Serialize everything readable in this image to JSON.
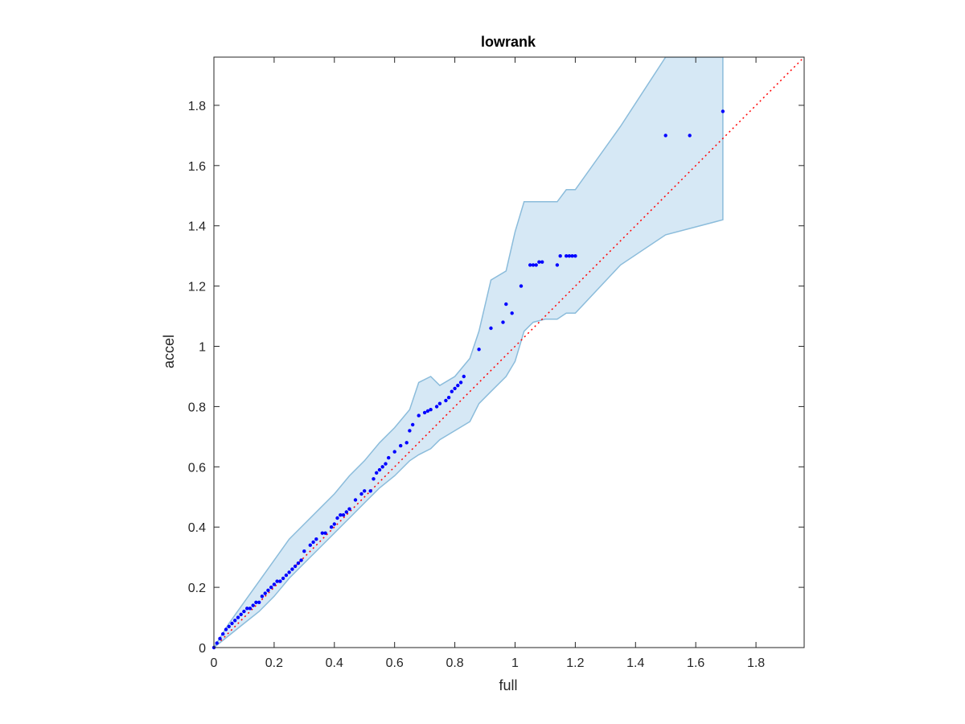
{
  "chart_data": {
    "type": "scatter",
    "title": "lowrank",
    "xlabel": "full",
    "ylabel": "accel",
    "xlim": [
      0,
      1.96
    ],
    "ylim": [
      0,
      1.96
    ],
    "xticks": [
      "0",
      "0.2",
      "0.4",
      "0.6",
      "0.8",
      "1",
      "1.2",
      "1.4",
      "1.6",
      "1.8"
    ],
    "yticks": [
      "0",
      "0.2",
      "0.4",
      "0.6",
      "0.8",
      "1",
      "1.2",
      "1.4",
      "1.6",
      "1.8"
    ],
    "xtick_values": [
      0,
      0.2,
      0.4,
      0.6,
      0.8,
      1.0,
      1.2,
      1.4,
      1.6,
      1.8
    ],
    "ytick_values": [
      0,
      0.2,
      0.4,
      0.6,
      0.8,
      1.0,
      1.2,
      1.4,
      1.6,
      1.8
    ],
    "grid": false,
    "reference_line": {
      "x": [
        0,
        1.96
      ],
      "y": [
        0,
        1.96
      ],
      "style": "dotted",
      "color": "#ff0000"
    },
    "band": {
      "x": [
        0,
        0.05,
        0.1,
        0.15,
        0.2,
        0.25,
        0.3,
        0.35,
        0.4,
        0.45,
        0.5,
        0.55,
        0.6,
        0.65,
        0.68,
        0.72,
        0.75,
        0.8,
        0.85,
        0.88,
        0.92,
        0.97,
        1.0,
        1.03,
        1.06,
        1.1,
        1.14,
        1.17,
        1.2,
        1.35,
        1.5,
        1.69
      ],
      "upper": [
        0,
        0.08,
        0.15,
        0.22,
        0.29,
        0.36,
        0.41,
        0.46,
        0.51,
        0.57,
        0.62,
        0.68,
        0.73,
        0.79,
        0.88,
        0.9,
        0.87,
        0.9,
        0.96,
        1.05,
        1.22,
        1.25,
        1.38,
        1.48,
        1.48,
        1.48,
        1.48,
        1.52,
        1.52,
        1.73,
        1.96,
        1.96
      ],
      "lower": [
        0,
        0.04,
        0.08,
        0.12,
        0.17,
        0.23,
        0.28,
        0.33,
        0.38,
        0.43,
        0.48,
        0.53,
        0.57,
        0.62,
        0.64,
        0.66,
        0.69,
        0.72,
        0.75,
        0.81,
        0.85,
        0.9,
        0.95,
        1.05,
        1.08,
        1.09,
        1.09,
        1.11,
        1.11,
        1.27,
        1.37,
        1.42
      ]
    },
    "series": [
      {
        "x": [
          0.0,
          0.01,
          0.02,
          0.03,
          0.04,
          0.05,
          0.06,
          0.07,
          0.08,
          0.09,
          0.1,
          0.11,
          0.12,
          0.13,
          0.14,
          0.15,
          0.16,
          0.17,
          0.18,
          0.19,
          0.2,
          0.21,
          0.22,
          0.23,
          0.24,
          0.25,
          0.26,
          0.27,
          0.28,
          0.29,
          0.3,
          0.32,
          0.33,
          0.34,
          0.36,
          0.37,
          0.39,
          0.4,
          0.41,
          0.42,
          0.43,
          0.44,
          0.45,
          0.47,
          0.49,
          0.5,
          0.52,
          0.53,
          0.54,
          0.55,
          0.56,
          0.57,
          0.58,
          0.6,
          0.62,
          0.64,
          0.65,
          0.66,
          0.68,
          0.7,
          0.71,
          0.72,
          0.74,
          0.75,
          0.77,
          0.78,
          0.79,
          0.8,
          0.81,
          0.82,
          0.83,
          0.88,
          0.92,
          0.96,
          0.97,
          0.99,
          1.02,
          1.05,
          1.06,
          1.07,
          1.08,
          1.09,
          1.14,
          1.15,
          1.17,
          1.18,
          1.19,
          1.2,
          1.5,
          1.58,
          1.69
        ],
        "y": [
          0.0,
          0.015,
          0.03,
          0.045,
          0.06,
          0.07,
          0.08,
          0.09,
          0.1,
          0.11,
          0.12,
          0.13,
          0.13,
          0.14,
          0.15,
          0.15,
          0.17,
          0.18,
          0.19,
          0.2,
          0.21,
          0.22,
          0.22,
          0.23,
          0.24,
          0.25,
          0.26,
          0.27,
          0.28,
          0.29,
          0.32,
          0.34,
          0.35,
          0.36,
          0.38,
          0.38,
          0.4,
          0.41,
          0.43,
          0.44,
          0.44,
          0.45,
          0.46,
          0.49,
          0.51,
          0.52,
          0.52,
          0.56,
          0.58,
          0.59,
          0.6,
          0.61,
          0.63,
          0.65,
          0.67,
          0.68,
          0.72,
          0.74,
          0.77,
          0.78,
          0.785,
          0.79,
          0.8,
          0.81,
          0.82,
          0.83,
          0.85,
          0.86,
          0.87,
          0.88,
          0.9,
          0.99,
          1.06,
          1.08,
          1.14,
          1.11,
          1.2,
          1.27,
          1.27,
          1.27,
          1.28,
          1.28,
          1.27,
          1.3,
          1.3,
          1.3,
          1.3,
          1.3,
          1.7,
          1.7,
          1.78
        ],
        "color": "#0000ff"
      }
    ],
    "colors": {
      "band_fill": "#d6e8f5",
      "band_edge": "#8bbcdb",
      "points": "#0000ff",
      "reference": "#ff0000",
      "axes": "#262626"
    }
  }
}
